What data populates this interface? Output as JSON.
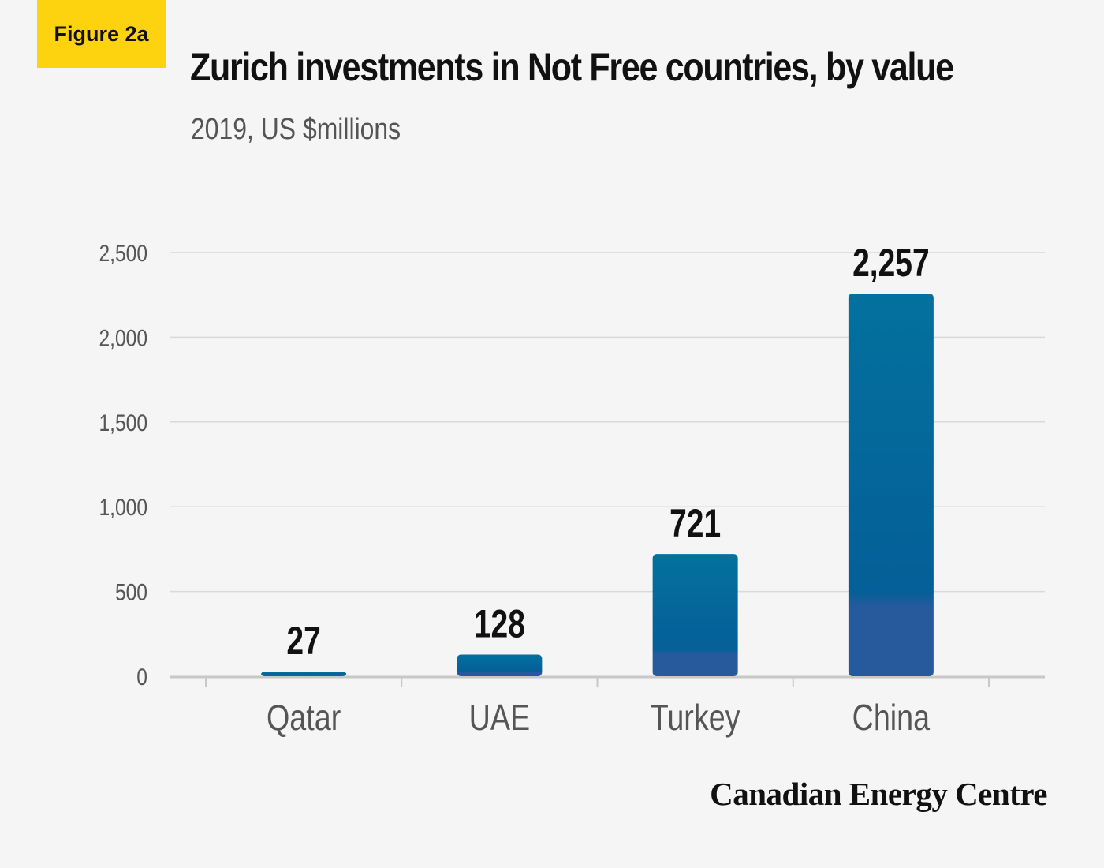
{
  "badge": "Figure 2a",
  "source": "Canadian Energy Centre",
  "colors": {
    "bar_top": "#03719e",
    "bar_mid": "#055f98",
    "bar_bottom": "#265a9c",
    "label": "#111111",
    "tick": "#555555",
    "grid": "#d9d9d9",
    "baseline": "#c8c8c8",
    "badge": "#fdd20f"
  },
  "chart_data": {
    "type": "bar",
    "title": "Zurich investments in Not Free countries, by value",
    "subtitle": "2019, US $millions",
    "categories": [
      "Qatar",
      "UAE",
      "Turkey",
      "China"
    ],
    "values": [
      27,
      128,
      721,
      2257
    ],
    "value_labels": [
      "27",
      "128",
      "721",
      "2,257"
    ],
    "ylim": [
      0,
      2500
    ],
    "yticks": [
      0,
      500,
      1000,
      1500,
      2000,
      2500
    ],
    "ytick_labels": [
      "0",
      "500",
      "1,000",
      "1,500",
      "2,000",
      "2,500"
    ],
    "grid": true,
    "legend": "none"
  }
}
